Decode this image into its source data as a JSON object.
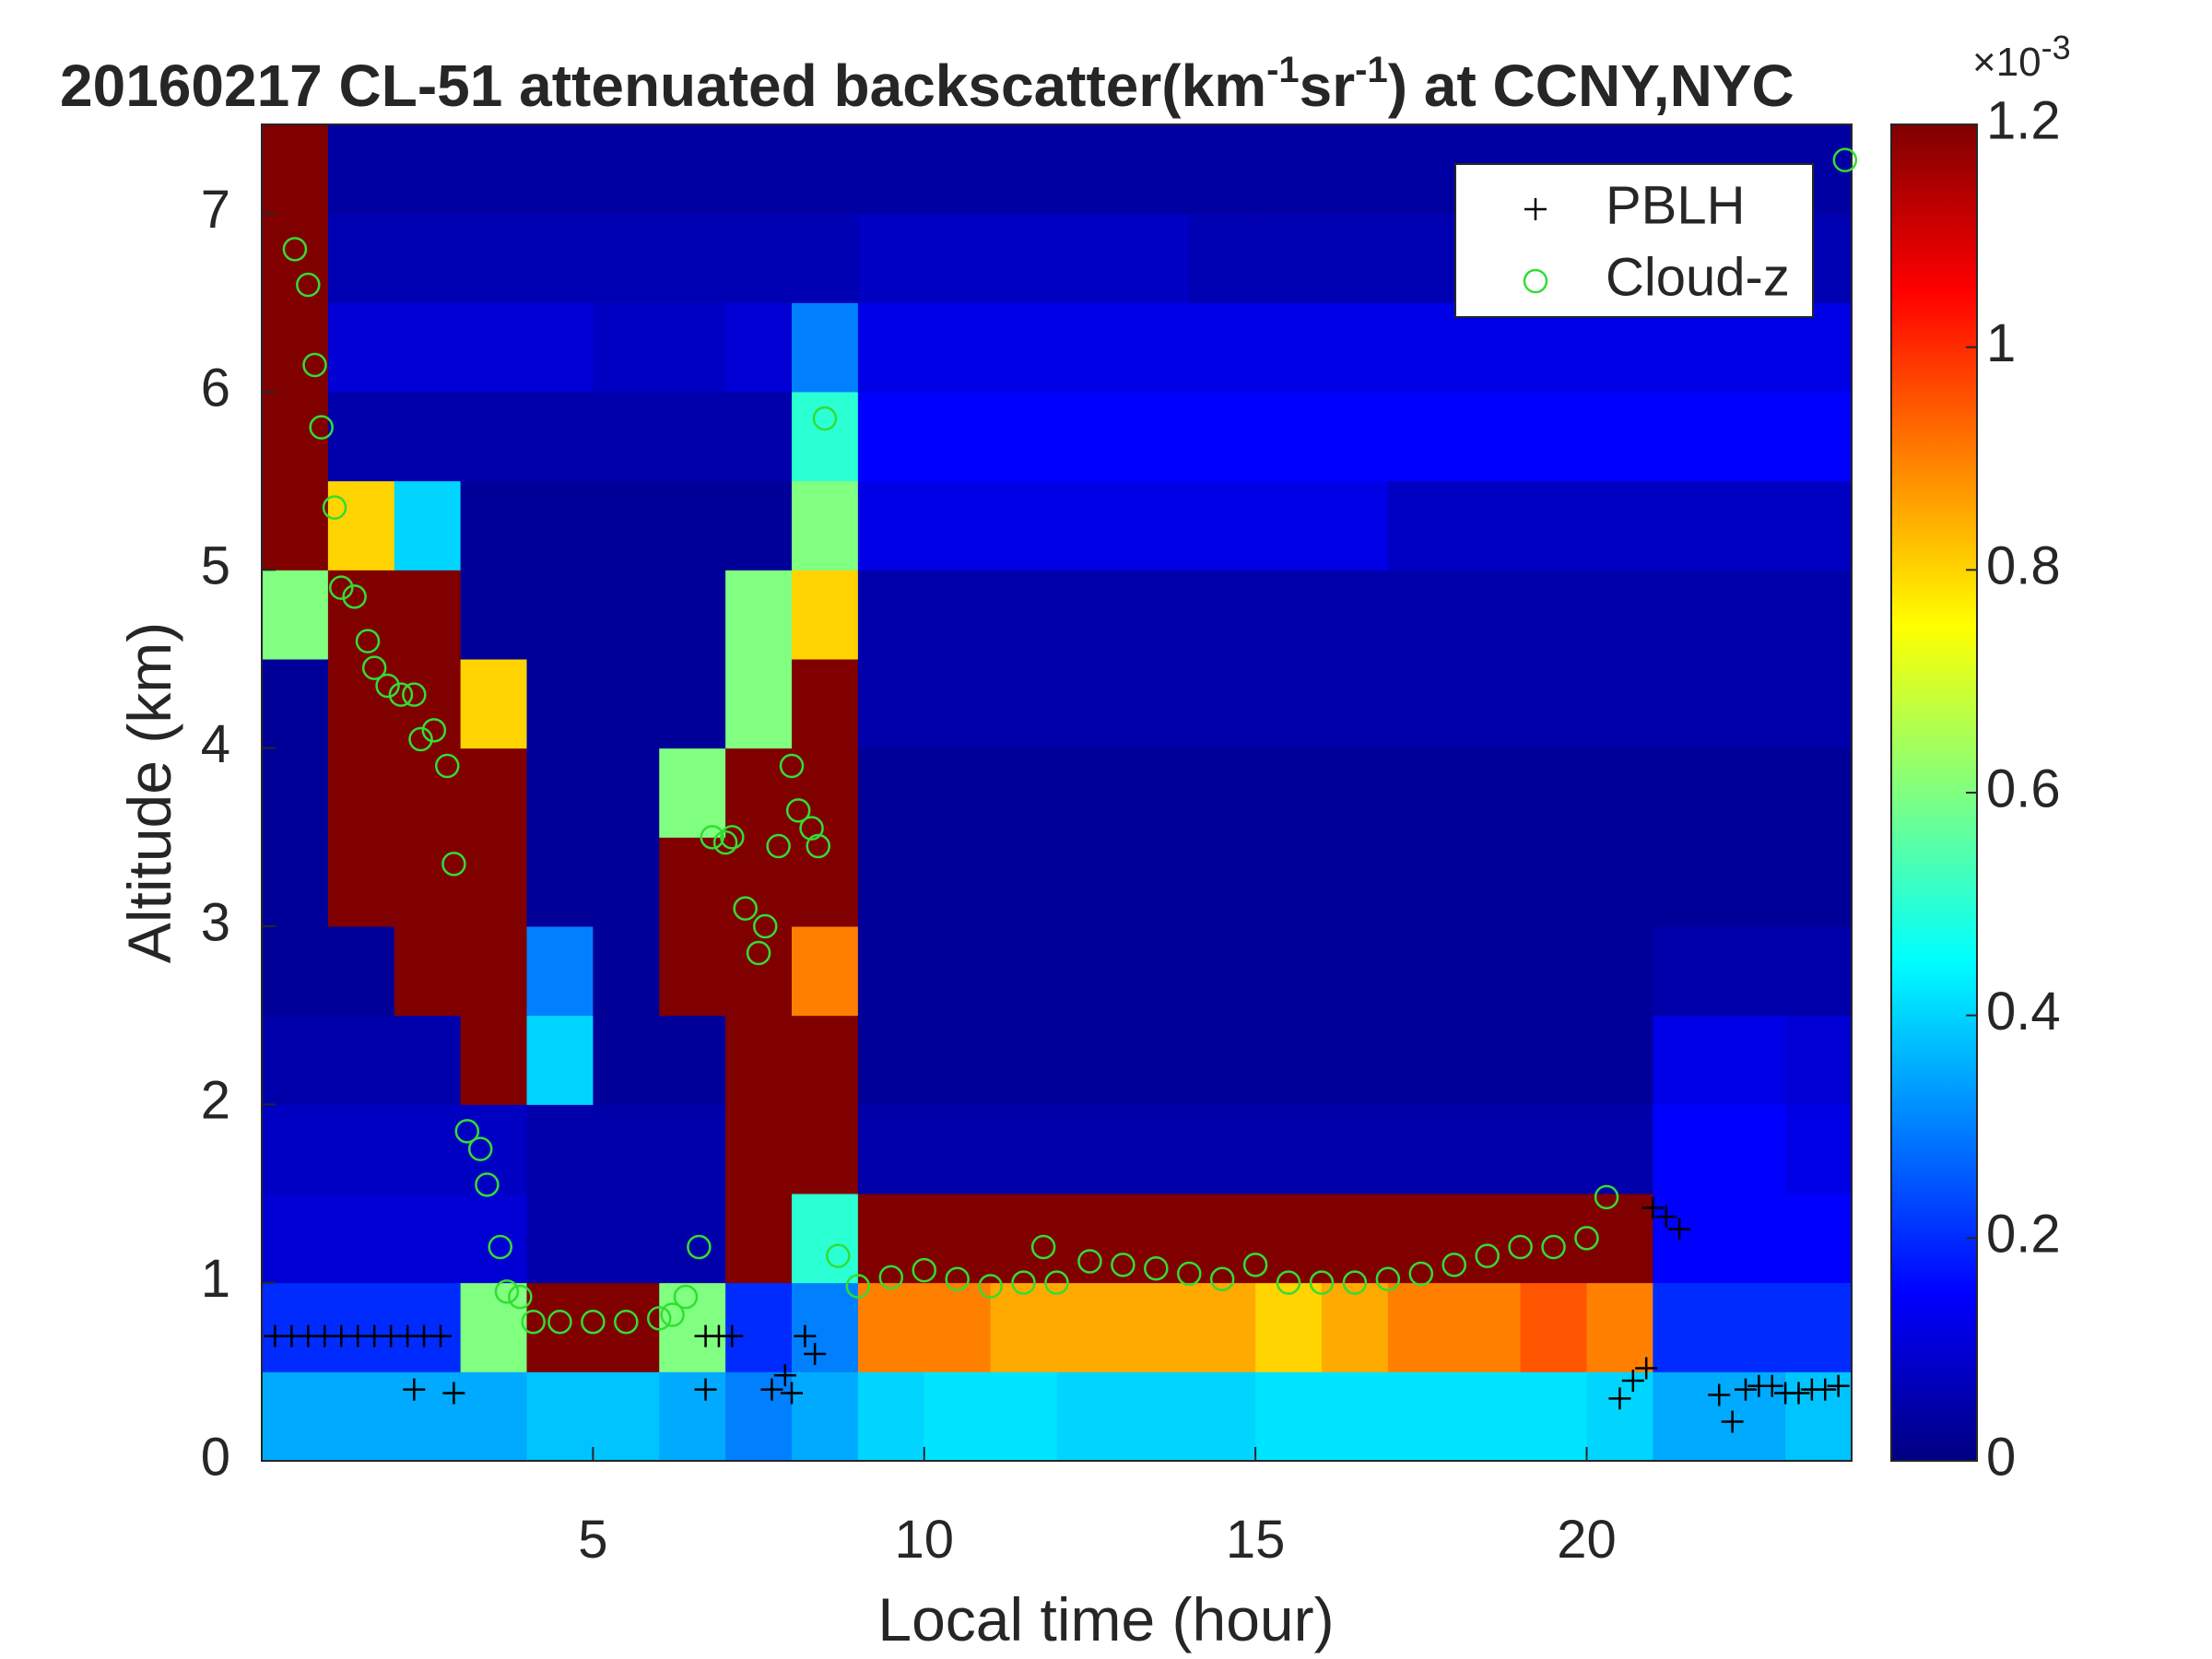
{
  "chart_data": {
    "type": "heatmap",
    "title": [
      "20160217  CL-51 attenuated backscatter(km",
      "-1",
      "sr",
      "-1",
      ") at CCNY,NYC"
    ],
    "xlabel": "Local time (hour)",
    "ylabel": "Altitude (km)",
    "xlim": [
      0,
      24
    ],
    "ylim": [
      0,
      7.5
    ],
    "xticks": [
      5,
      10,
      15,
      20
    ],
    "yticks": [
      0,
      1,
      2,
      3,
      4,
      5,
      6,
      7
    ],
    "x_edges": [
      0,
      1,
      2,
      3,
      4,
      5,
      6,
      7,
      8,
      9,
      10,
      11,
      12,
      13,
      14,
      15,
      16,
      17,
      18,
      19,
      20,
      21,
      22,
      23,
      24
    ],
    "y_edges": [
      0,
      0.5,
      1,
      1.5,
      2,
      2.5,
      3,
      3.5,
      4,
      4.5,
      5,
      5.5,
      6,
      6.5,
      7,
      7.5
    ],
    "z": [
      [
        0.35,
        0.35,
        0.35,
        0.35,
        0.38,
        0.38,
        0.35,
        0.3,
        0.35,
        0.4,
        0.42,
        0.42,
        0.4,
        0.4,
        0.4,
        0.42,
        0.42,
        0.42,
        0.42,
        0.42,
        0.4,
        0.35,
        0.35,
        0.38
      ],
      [
        0.2,
        0.2,
        0.2,
        0.6,
        1.2,
        1.2,
        0.6,
        0.2,
        0.3,
        0.9,
        0.9,
        0.85,
        0.85,
        0.85,
        0.85,
        0.8,
        0.85,
        0.9,
        0.9,
        0.95,
        0.9,
        0.2,
        0.2,
        0.2
      ],
      [
        0.1,
        0.1,
        0.1,
        0.1,
        0.05,
        0.05,
        0.05,
        1.2,
        0.5,
        1.2,
        1.2,
        1.2,
        1.2,
        1.2,
        1.2,
        1.2,
        1.2,
        1.2,
        1.2,
        1.2,
        1.2,
        0.15,
        0.15,
        0.15
      ],
      [
        0.08,
        0.08,
        0.08,
        0.08,
        0.05,
        0.05,
        0.05,
        1.2,
        1.2,
        0.05,
        0.05,
        0.05,
        0.05,
        0.05,
        0.05,
        0.05,
        0.05,
        0.05,
        0.05,
        0.05,
        0.05,
        0.15,
        0.15,
        0.12
      ],
      [
        0.05,
        0.05,
        0.05,
        1.2,
        0.4,
        0.03,
        0.03,
        1.2,
        1.2,
        0.03,
        0.03,
        0.03,
        0.03,
        0.03,
        0.03,
        0.03,
        0.03,
        0.03,
        0.03,
        0.03,
        0.03,
        0.12,
        0.12,
        0.1
      ],
      [
        0.03,
        0.03,
        1.2,
        1.2,
        0.3,
        0.03,
        1.2,
        1.2,
        0.9,
        0.03,
        0.03,
        0.03,
        0.03,
        0.03,
        0.03,
        0.03,
        0.03,
        0.03,
        0.03,
        0.03,
        0.03,
        0.05,
        0.05,
        0.05
      ],
      [
        0.03,
        1.2,
        1.2,
        1.2,
        0.03,
        0.03,
        1.2,
        1.2,
        1.2,
        0.03,
        0.03,
        0.03,
        0.03,
        0.03,
        0.03,
        0.03,
        0.03,
        0.03,
        0.03,
        0.03,
        0.03,
        0.03,
        0.03,
        0.03
      ],
      [
        0.03,
        1.2,
        1.2,
        1.2,
        0.03,
        0.03,
        0.6,
        1.2,
        1.2,
        0.03,
        0.03,
        0.03,
        0.03,
        0.03,
        0.03,
        0.03,
        0.03,
        0.03,
        0.03,
        0.03,
        0.03,
        0.03,
        0.03,
        0.03
      ],
      [
        0.03,
        1.2,
        1.2,
        0.8,
        0.03,
        0.03,
        0.03,
        0.6,
        1.2,
        0.05,
        0.05,
        0.05,
        0.05,
        0.05,
        0.05,
        0.05,
        0.05,
        0.05,
        0.05,
        0.05,
        0.05,
        0.05,
        0.05,
        0.05
      ],
      [
        0.6,
        1.2,
        1.2,
        0.03,
        0.03,
        0.03,
        0.03,
        0.6,
        0.8,
        0.05,
        0.05,
        0.05,
        0.05,
        0.05,
        0.05,
        0.05,
        0.05,
        0.05,
        0.05,
        0.05,
        0.05,
        0.05,
        0.05,
        0.05
      ],
      [
        1.2,
        0.8,
        0.4,
        0.03,
        0.03,
        0.03,
        0.03,
        0.03,
        0.6,
        0.12,
        0.12,
        0.12,
        0.12,
        0.12,
        0.12,
        0.12,
        0.12,
        0.08,
        0.08,
        0.08,
        0.08,
        0.08,
        0.08,
        0.08
      ],
      [
        1.2,
        0.05,
        0.05,
        0.05,
        0.05,
        0.05,
        0.05,
        0.05,
        0.5,
        0.15,
        0.15,
        0.15,
        0.15,
        0.15,
        0.15,
        0.15,
        0.15,
        0.15,
        0.15,
        0.15,
        0.15,
        0.15,
        0.15,
        0.15
      ],
      [
        1.2,
        0.1,
        0.1,
        0.1,
        0.1,
        0.08,
        0.08,
        0.1,
        0.3,
        0.12,
        0.12,
        0.12,
        0.12,
        0.12,
        0.12,
        0.12,
        0.12,
        0.12,
        0.12,
        0.12,
        0.12,
        0.12,
        0.12,
        0.12
      ],
      [
        1.2,
        0.06,
        0.06,
        0.06,
        0.06,
        0.06,
        0.06,
        0.06,
        0.06,
        0.08,
        0.08,
        0.08,
        0.08,
        0.08,
        0.06,
        0.06,
        0.06,
        0.06,
        0.06,
        0.06,
        0.06,
        0.06,
        0.06,
        0.06
      ],
      [
        1.2,
        0.04,
        0.04,
        0.04,
        0.04,
        0.04,
        0.04,
        0.04,
        0.04,
        0.04,
        0.04,
        0.04,
        0.04,
        0.04,
        0.04,
        0.04,
        0.04,
        0.04,
        0.04,
        0.04,
        0.04,
        0.04,
        0.04,
        0.04
      ]
    ],
    "colorbar": {
      "lim": [
        0,
        1.2
      ],
      "ticks": [
        0,
        0.2,
        0.4,
        0.6,
        0.8,
        1,
        1.2
      ],
      "label": [
        "×10",
        "-3"
      ]
    },
    "series": [
      {
        "name": "PBLH",
        "marker": "+",
        "color": "#000000",
        "x": [
          0.2,
          0.45,
          0.7,
          0.95,
          1.2,
          1.45,
          1.7,
          1.95,
          2.2,
          2.45,
          2.7,
          2.3,
          2.9,
          6.7,
          6.9,
          7.1,
          6.7,
          7.7,
          7.9,
          8.0,
          8.2,
          8.35,
          20.5,
          20.7,
          20.9,
          21.0,
          21.2,
          21.4,
          22.0,
          22.2,
          22.4,
          22.6,
          22.8,
          23.0,
          23.2,
          23.4,
          23.6,
          23.8
        ],
        "values": [
          0.7,
          0.7,
          0.7,
          0.7,
          0.7,
          0.7,
          0.7,
          0.7,
          0.7,
          0.7,
          0.7,
          0.4,
          0.38,
          0.7,
          0.7,
          0.7,
          0.4,
          0.4,
          0.48,
          0.38,
          0.7,
          0.6,
          0.35,
          0.45,
          0.52,
          1.42,
          1.37,
          1.3,
          0.37,
          0.22,
          0.4,
          0.42,
          0.42,
          0.38,
          0.38,
          0.4,
          0.4,
          0.42
        ]
      },
      {
        "name": "Cloud-z",
        "marker": "o",
        "color": "#33dd33",
        "x": [
          0.5,
          0.7,
          0.8,
          0.9,
          1.1,
          1.2,
          1.4,
          1.6,
          1.7,
          1.9,
          2.1,
          2.3,
          2.4,
          2.6,
          2.8,
          2.9,
          3.1,
          3.3,
          3.4,
          3.6,
          3.7,
          3.9,
          4.1,
          4.5,
          5.0,
          5.5,
          6.0,
          6.2,
          6.4,
          6.6,
          6.8,
          7.0,
          7.1,
          7.3,
          7.5,
          7.6,
          7.8,
          8.0,
          8.1,
          8.3,
          8.4,
          8.5,
          8.7,
          9.0,
          9.5,
          10.0,
          10.5,
          11.0,
          11.5,
          11.8,
          12.0,
          12.5,
          13.0,
          13.5,
          14.0,
          14.5,
          15.0,
          15.5,
          16.0,
          16.5,
          17.0,
          17.5,
          18.0,
          18.5,
          19.0,
          19.5,
          20.0,
          20.3,
          23.9
        ],
        "values": [
          6.8,
          6.6,
          6.15,
          5.8,
          5.35,
          4.9,
          4.85,
          4.6,
          4.45,
          4.35,
          4.3,
          4.3,
          4.05,
          4.1,
          3.9,
          3.35,
          1.85,
          1.75,
          1.55,
          1.2,
          0.95,
          0.92,
          0.78,
          0.78,
          0.78,
          0.78,
          0.8,
          0.82,
          0.92,
          1.2,
          3.5,
          3.47,
          3.5,
          3.1,
          2.85,
          3.0,
          3.45,
          3.9,
          3.65,
          3.55,
          3.45,
          5.85,
          1.15,
          0.98,
          1.03,
          1.07,
          1.02,
          0.98,
          1.0,
          1.2,
          1.0,
          1.12,
          1.1,
          1.08,
          1.05,
          1.02,
          1.1,
          1.0,
          1.0,
          1.0,
          1.02,
          1.05,
          1.1,
          1.15,
          1.2,
          1.2,
          1.25,
          1.48,
          7.3
        ]
      }
    ],
    "legend": "upper right"
  }
}
